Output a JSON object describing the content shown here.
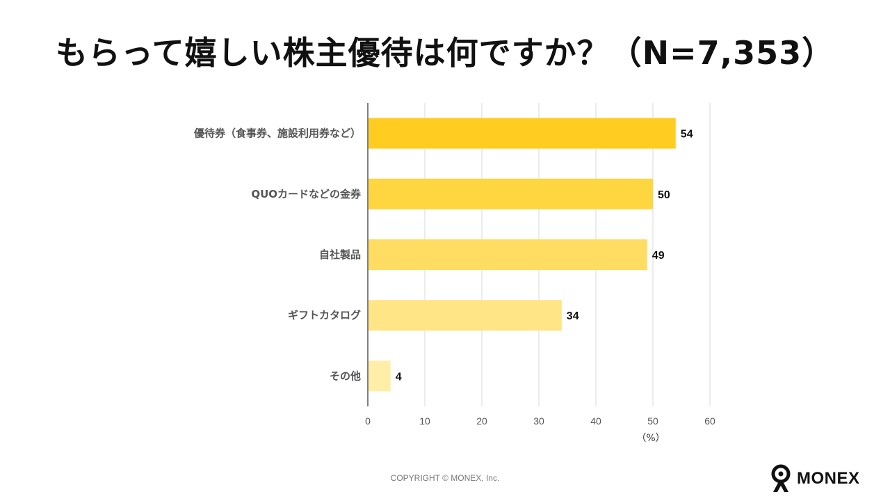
{
  "title": "もらって嬉しい株主優待は何ですか？（N=7,353）",
  "chart_data": {
    "type": "bar",
    "orientation": "horizontal",
    "categories": [
      "優待券（食事券、施設利用券など）",
      "QUOカードなどの金券",
      "自社製品",
      "ギフトカタログ",
      "その他"
    ],
    "values": [
      54,
      50,
      49,
      34,
      4
    ],
    "data_labels": [
      "54",
      "50",
      "49",
      "34",
      "4"
    ],
    "xticks": [
      "0",
      "10",
      "20",
      "30",
      "40",
      "50",
      "60"
    ],
    "xlim": [
      0,
      60
    ],
    "unit_label": "（%）",
    "grid": true,
    "bar_colors": [
      "#FFCD22",
      "#FFD540",
      "#FFDD62",
      "#FFE585",
      "#FFEEA8"
    ]
  },
  "footer": {
    "copyright": "COPYRIGHT © MONEX, Inc."
  },
  "logo": {
    "text": "MONEX",
    "icon": "monex-mascot-icon"
  }
}
